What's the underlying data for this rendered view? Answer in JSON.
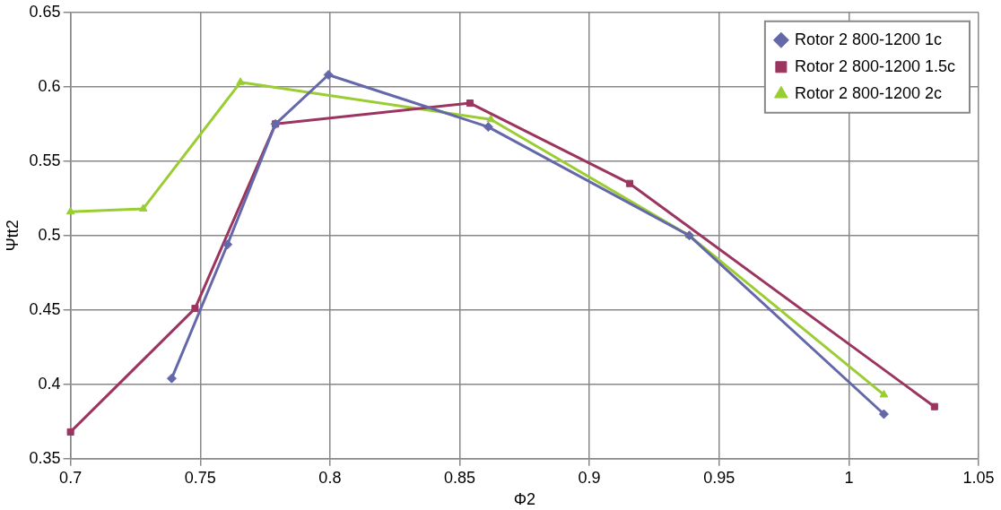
{
  "chart_data": {
    "type": "line",
    "xlabel": "Φ2",
    "ylabel": "Ψtt2",
    "xlim": [
      0.7,
      1.05
    ],
    "xticks": [
      0.7,
      0.75,
      0.8,
      0.85,
      0.9,
      0.95,
      1,
      1.05
    ],
    "ylim": [
      0.35,
      0.65
    ],
    "yticks": [
      0.35,
      0.4,
      0.45,
      0.5,
      0.55,
      0.6,
      0.65
    ],
    "grid": true,
    "legend": "top right",
    "line_style": "solid",
    "series": [
      {
        "name": "Rotor 2 800-1200 1c",
        "color": "#6468a8",
        "marker": "diamond",
        "x": [
          0.739,
          0.7605,
          0.779,
          0.7994,
          0.861,
          0.9385,
          1.0135
        ],
        "values": [
          0.404,
          0.494,
          0.575,
          0.608,
          0.573,
          0.5,
          0.38
        ]
      },
      {
        "name": "Rotor 2 800-1200 1.5c",
        "color": "#9b3560",
        "marker": "square",
        "x": [
          0.7,
          0.748,
          0.779,
          0.854,
          0.9155,
          1.033
        ],
        "values": [
          0.368,
          0.451,
          0.575,
          0.589,
          0.535,
          0.385
        ]
      },
      {
        "name": "Rotor 2 800-1200 2c",
        "color": "#9acd32",
        "marker": "triangle",
        "x": [
          0.7,
          0.728,
          0.7655,
          0.862,
          0.9385,
          1.0135
        ],
        "values": [
          0.516,
          0.518,
          0.603,
          0.578,
          0.5,
          0.393
        ]
      }
    ]
  }
}
